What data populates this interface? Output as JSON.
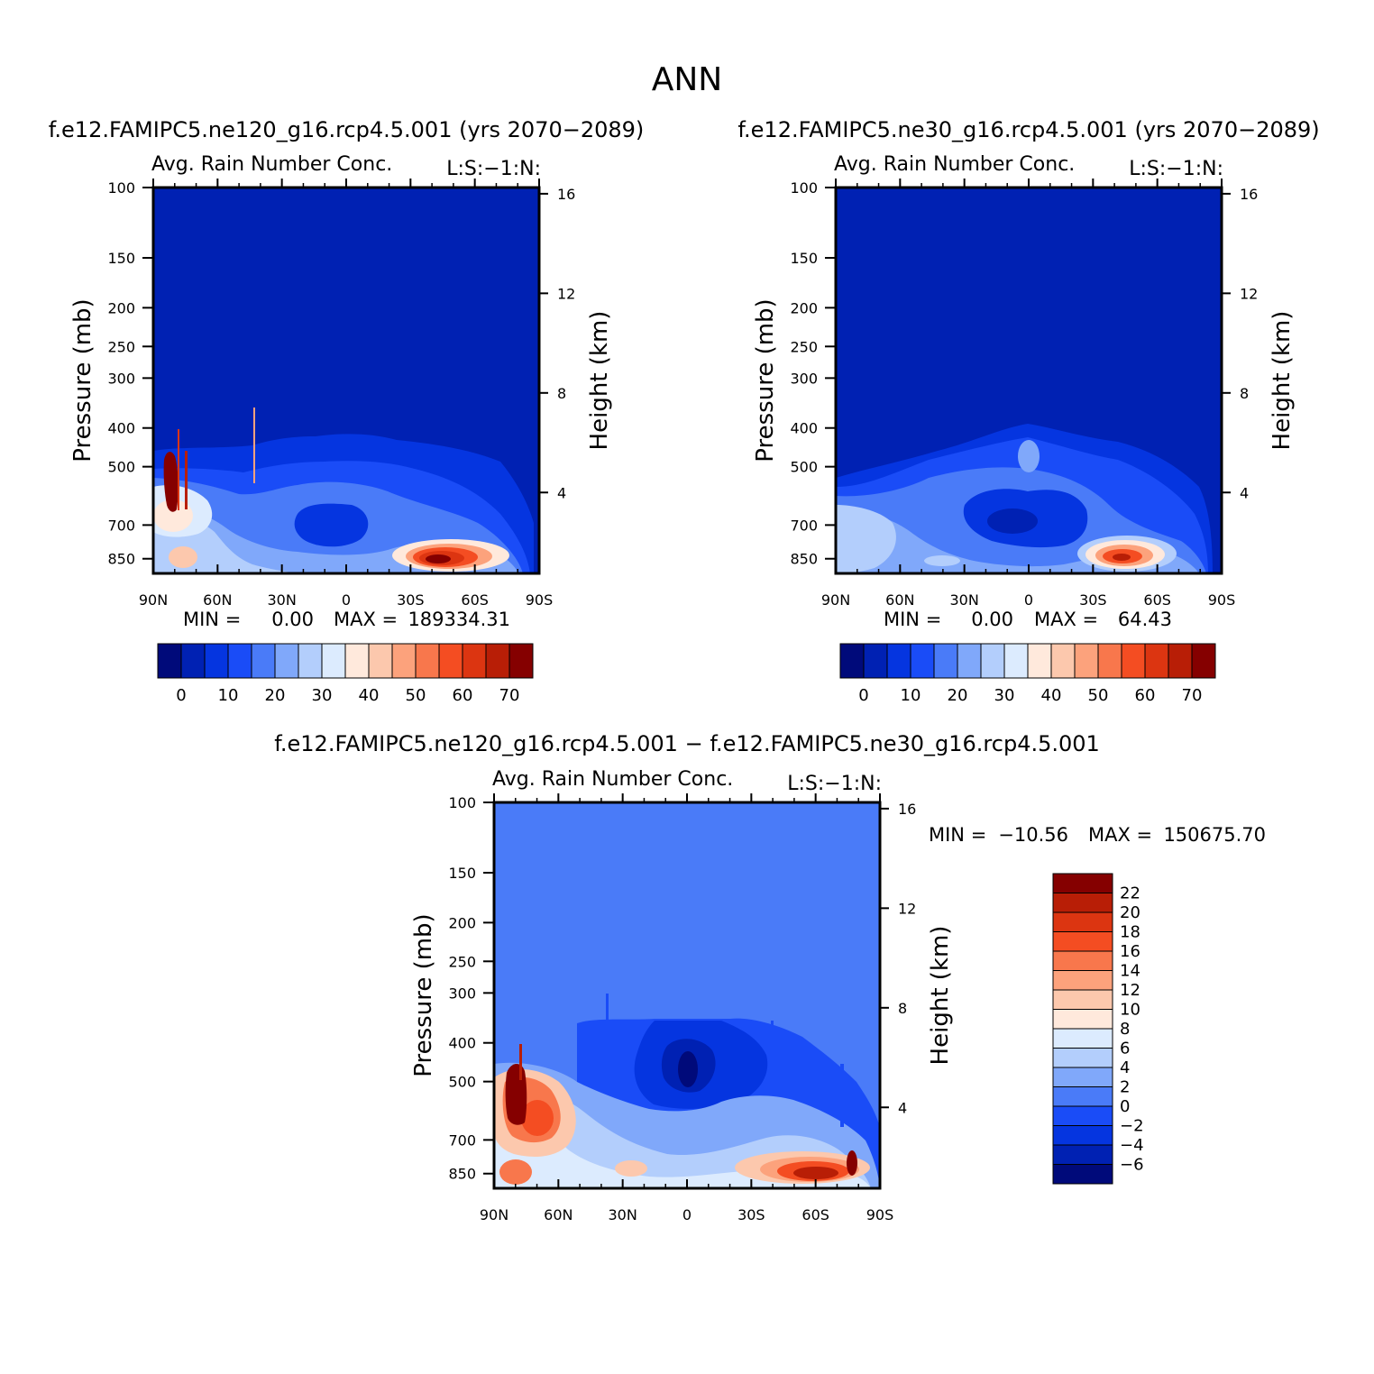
{
  "figure": {
    "title": "ANN"
  },
  "colors": {
    "main_scale": [
      "#000a7a",
      "#0021b3",
      "#0535e0",
      "#1a4cf7",
      "#4a7bf8",
      "#80a8fa",
      "#b3cefc",
      "#dcebfe",
      "#ffe9dc",
      "#fcc8ad",
      "#fca27c",
      "#f8774c",
      "#f44d22",
      "#dc3511",
      "#b81e06",
      "#850000"
    ],
    "diff_scale": [
      "#000a7a",
      "#0021b3",
      "#0535e0",
      "#1a4cf7",
      "#4a7bf8",
      "#80a8fa",
      "#b3cefc",
      "#dcebfe",
      "#ffe9dc",
      "#fcc8ad",
      "#fca27c",
      "#f8774c",
      "#f44d22",
      "#dc3511",
      "#b81e06",
      "#850000"
    ]
  },
  "chart_data": [
    {
      "type": "heatmap",
      "id": "p1",
      "title": "f.e12.FAMIPC5.ne120_g16.rcp4.5.001 (yrs 2070−2089)",
      "subtitle": "Avg. Rain Number Conc.",
      "units_label": "L:S:−1:N:",
      "ylabel": "Pressure  (mb)",
      "y2label": "Height  (km)",
      "x_ticks": [
        "90N",
        "60N",
        "30N",
        "0",
        "30S",
        "60S",
        "90S"
      ],
      "y_ticks": [
        "100",
        "150",
        "200",
        "250",
        "300",
        "400",
        "500",
        "700",
        "850"
      ],
      "y2_ticks": [
        "16",
        "12",
        "8",
        "4"
      ],
      "min_label": "MIN =",
      "min_value": "0.00",
      "max_label": "MAX =",
      "max_value": "189334.31",
      "colorbar_labels": [
        "0",
        "10",
        "20",
        "30",
        "40",
        "50",
        "60",
        "70"
      ]
    },
    {
      "type": "heatmap",
      "id": "p2",
      "title": "f.e12.FAMIPC5.ne30_g16.rcp4.5.001 (yrs 2070−2089)",
      "subtitle": "Avg. Rain Number Conc.",
      "units_label": "L:S:−1:N:",
      "ylabel": "Pressure  (mb)",
      "y2label": "Height  (km)",
      "x_ticks": [
        "90N",
        "60N",
        "30N",
        "0",
        "30S",
        "60S",
        "90S"
      ],
      "y_ticks": [
        "100",
        "150",
        "200",
        "250",
        "300",
        "400",
        "500",
        "700",
        "850"
      ],
      "y2_ticks": [
        "16",
        "12",
        "8",
        "4"
      ],
      "min_label": "MIN =",
      "min_value": "0.00",
      "max_label": "MAX =",
      "max_value": "64.43",
      "colorbar_labels": [
        "0",
        "10",
        "20",
        "30",
        "40",
        "50",
        "60",
        "70"
      ]
    },
    {
      "type": "heatmap",
      "id": "p3",
      "title": "f.e12.FAMIPC5.ne120_g16.rcp4.5.001 − f.e12.FAMIPC5.ne30_g16.rcp4.5.001",
      "subtitle": "Avg. Rain Number Conc.",
      "units_label": "L:S:−1:N:",
      "ylabel": "Pressure  (mb)",
      "y2label": "Height  (km)",
      "x_ticks": [
        "90N",
        "60N",
        "30N",
        "0",
        "30S",
        "60S",
        "90S"
      ],
      "y_ticks": [
        "100",
        "150",
        "200",
        "250",
        "300",
        "400",
        "500",
        "700",
        "850"
      ],
      "y2_ticks": [
        "16",
        "12",
        "8",
        "4"
      ],
      "min_label": "MIN =",
      "min_value": "−10.56",
      "max_label": "MAX =",
      "max_value": "150675.70",
      "colorbar_labels": [
        "22",
        "20",
        "18",
        "16",
        "14",
        "12",
        "10",
        "8",
        "6",
        "4",
        "2",
        "0",
        "−2",
        "−4",
        "−6"
      ]
    }
  ]
}
